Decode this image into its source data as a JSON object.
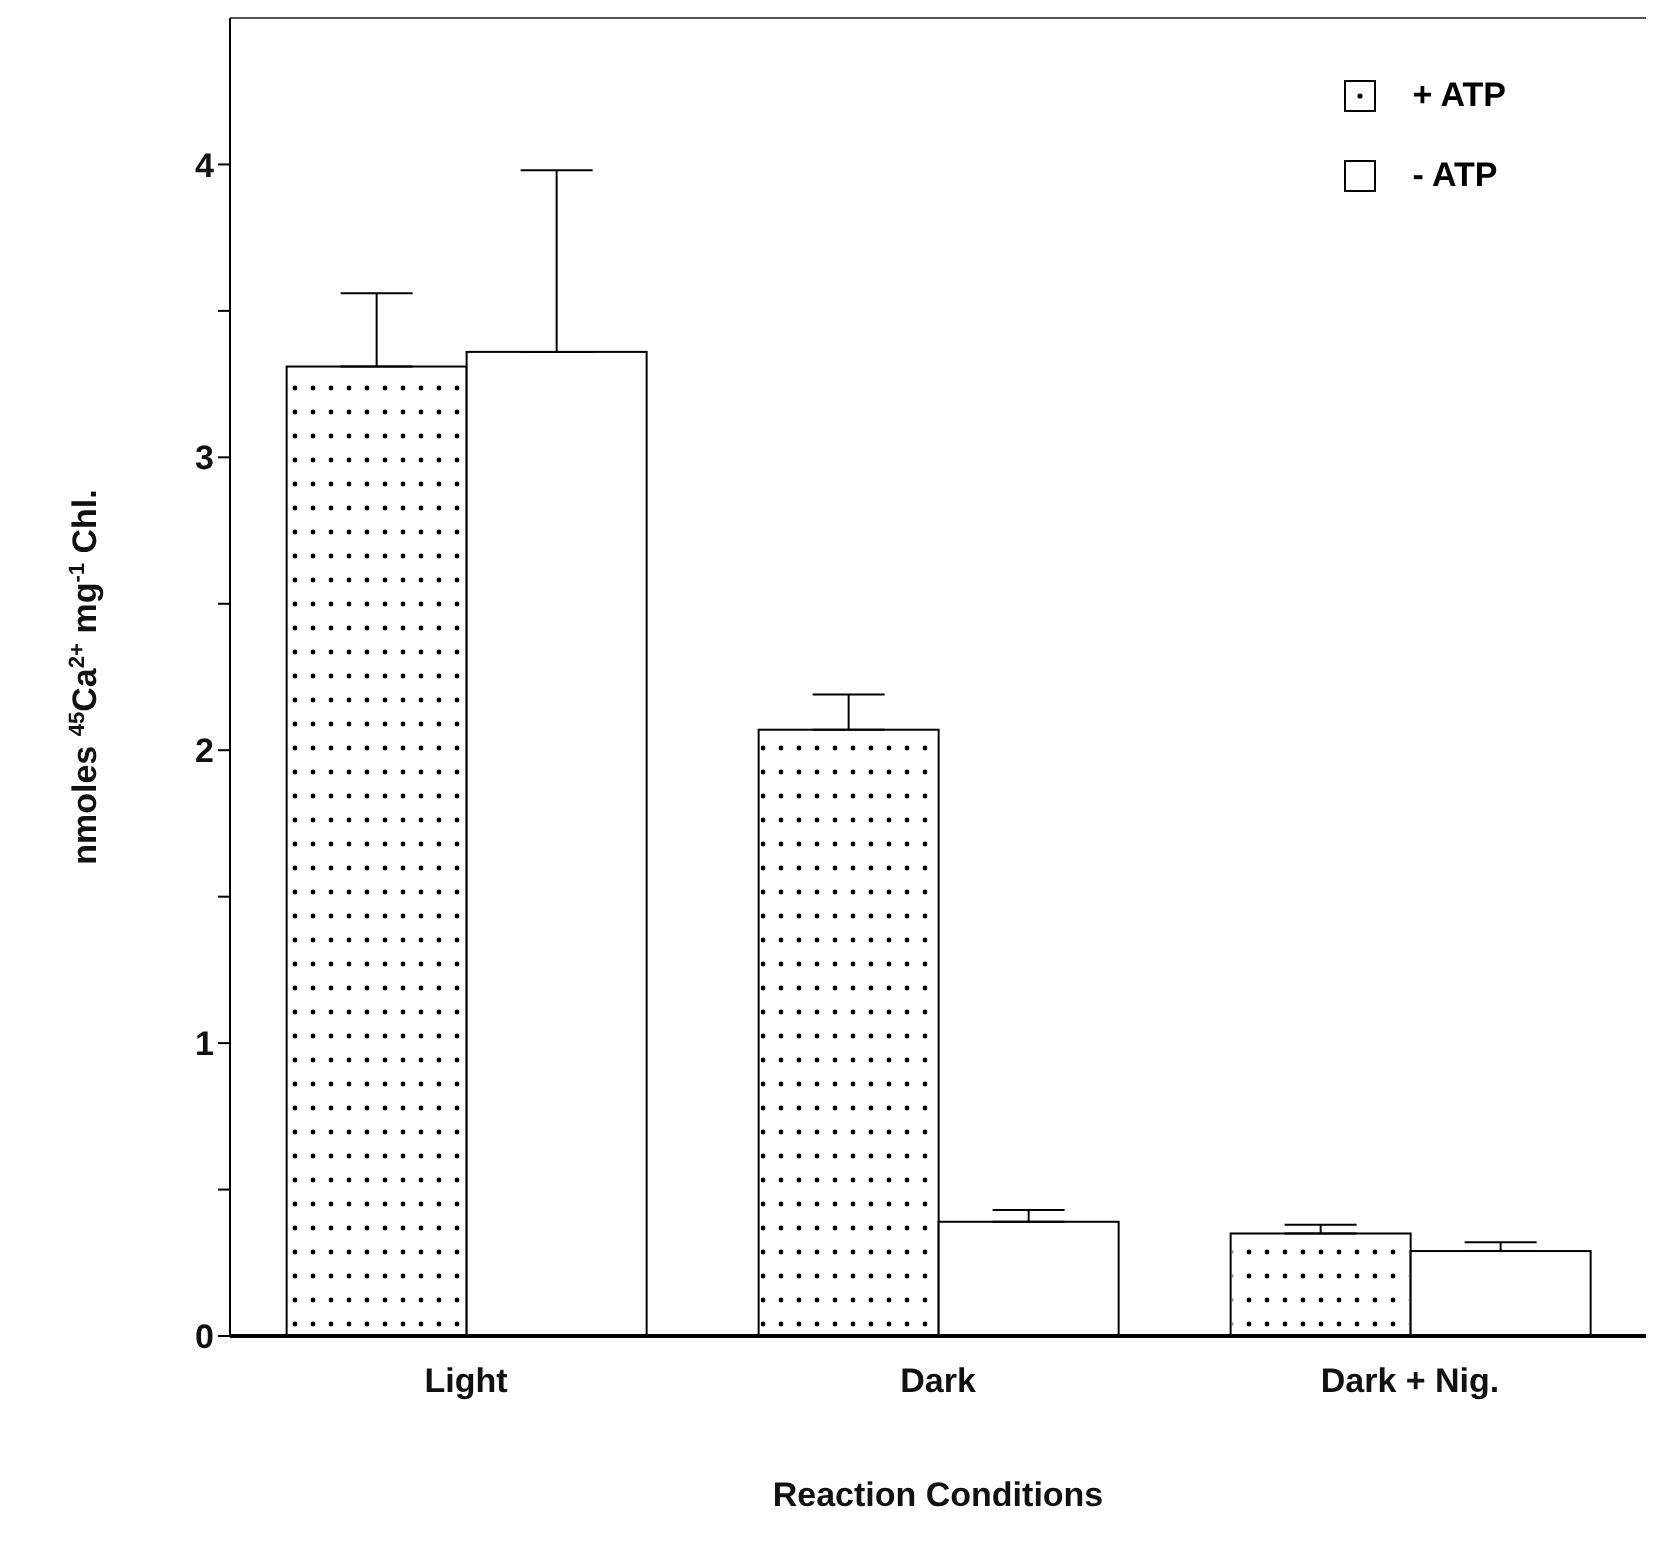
{
  "chart_data": {
    "type": "bar",
    "xlabel": "Reaction Conditions",
    "ylabel": "nmoles $^{45}$Ca$^{2+}$ mg$^{-1}$ Chl.",
    "categories": [
      "Light",
      "Dark",
      "Dark + Nig."
    ],
    "series": [
      {
        "name": "+ ATP",
        "color": "#ffffff",
        "values": [
          3.31,
          2.07,
          0.35
        ],
        "errors": [
          0.25,
          0.12,
          0.03
        ]
      },
      {
        "name": "- ATP",
        "color": "#ffffff",
        "values": [
          3.36,
          0.39,
          0.29
        ],
        "errors": [
          0.62,
          0.04,
          0.03
        ]
      }
    ],
    "ylim": [
      0,
      4.5
    ],
    "yticks": [
      0,
      {
        "value": 0.5,
        "label": null
      },
      1,
      {
        "value": 1.5,
        "label": null
      },
      2,
      {
        "value": 2.5,
        "label": null
      },
      3,
      {
        "value": 3.5,
        "label": null
      },
      4
    ],
    "grid": false,
    "legend": "top right"
  }
}
